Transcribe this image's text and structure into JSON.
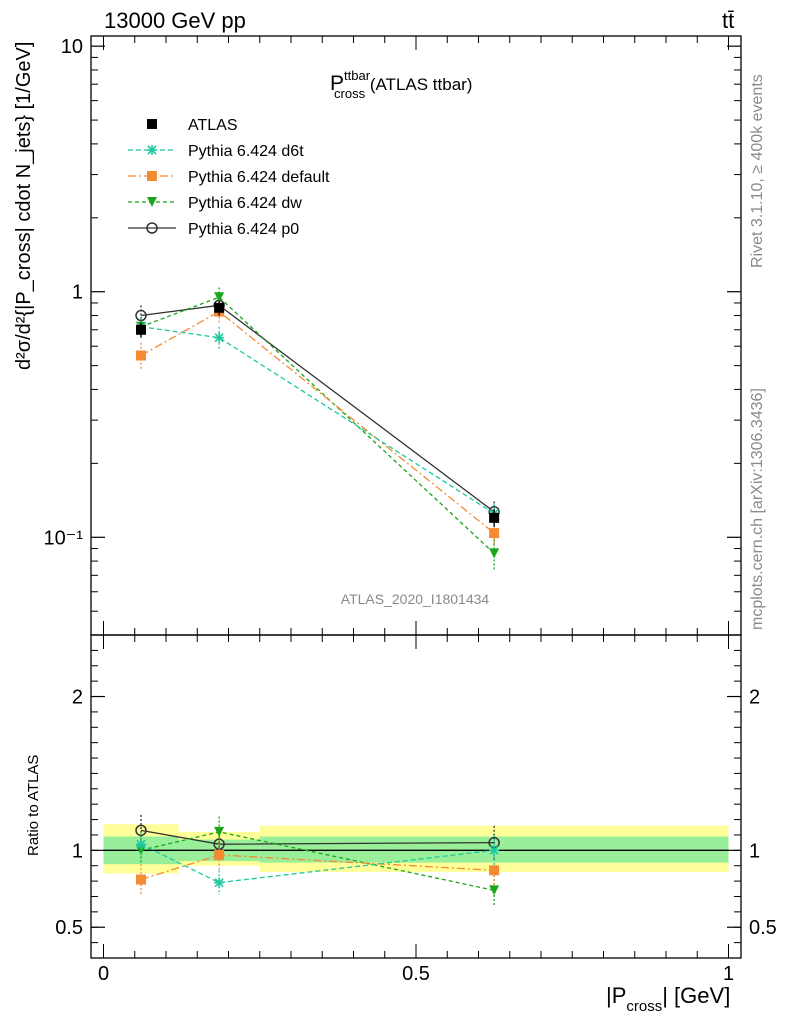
{
  "header": {
    "left": "13000 GeV pp",
    "right": "tt̄"
  },
  "side_labels": {
    "rivet": "Rivet 3.1.10, ≥ 400k events",
    "mcplots": "mcplots.cern.ch [arXiv:1306.3436]"
  },
  "watermark": "ATLAS_2020_I1801434",
  "main_title": {
    "base": "P",
    "sup": "ttbar",
    "sub": "cross",
    "rest": " (ATLAS ttbar)"
  },
  "ylabel_main": "d²σ/d²{|P_cross| cdot N_jets} [1/GeV]",
  "ylabel_ratio": "Ratio to ATLAS",
  "xlabel": {
    "pre": "|P",
    "sub": "cross",
    "post": "| [GeV]"
  },
  "legend": [
    {
      "label": "ATLAS",
      "color": "#000000",
      "marker": "square"
    },
    {
      "label": "Pythia 6.424 d6t",
      "color": "#1ec8a0",
      "marker": "star"
    },
    {
      "label": "Pythia 6.424 default",
      "color": "#f58a33",
      "marker": "square"
    },
    {
      "label": "Pythia 6.424 dw",
      "color": "#1aa51a",
      "marker": "triangle-down"
    },
    {
      "label": "Pythia 6.424 p0",
      "color": "#333333",
      "marker": "circle-open"
    }
  ],
  "chart_data": [
    {
      "type": "line",
      "panel": "main",
      "y_scale": "log",
      "xlim": [
        -0.02,
        1.02
      ],
      "ylim": [
        0.04,
        11
      ],
      "y_tick_labels": [
        "10⁻¹",
        "1",
        "10"
      ],
      "x": [
        0.06,
        0.185,
        0.625
      ],
      "bins": [
        [
          0,
          0.12
        ],
        [
          0.12,
          0.25
        ],
        [
          0.25,
          1.0
        ]
      ],
      "series": [
        {
          "name": "ATLAS",
          "values": [
            0.7,
            0.86,
            0.12
          ],
          "errors": [
            0.05,
            0.06,
            0.01
          ]
        },
        {
          "name": "Pythia 6.424 d6t",
          "values": [
            0.72,
            0.65,
            0.125
          ],
          "errors": [
            0.06,
            0.07,
            0.012
          ]
        },
        {
          "name": "Pythia 6.424 default",
          "values": [
            0.55,
            0.83,
            0.104
          ],
          "errors": [
            0.07,
            0.09,
            0.012
          ]
        },
        {
          "name": "Pythia 6.424 dw",
          "values": [
            0.72,
            0.95,
            0.086
          ],
          "errors": [
            0.07,
            0.09,
            0.012
          ]
        },
        {
          "name": "Pythia 6.424 p0",
          "values": [
            0.8,
            0.88,
            0.127
          ],
          "errors": [
            0.08,
            0.08,
            0.013
          ]
        }
      ]
    },
    {
      "type": "line",
      "panel": "ratio",
      "xlim": [
        -0.02,
        1.02
      ],
      "ylim": [
        0.3,
        2.4
      ],
      "y_tick_labels": [
        "0.5",
        "1",
        "2"
      ],
      "x_tick_labels": [
        "0",
        "0.5",
        "1"
      ],
      "bands": [
        {
          "x0": 0.0,
          "x1": 0.12,
          "inner": [
            0.91,
            1.09
          ],
          "outer": [
            0.85,
            1.17
          ]
        },
        {
          "x0": 0.12,
          "x1": 0.25,
          "inner": [
            0.93,
            1.07
          ],
          "outer": [
            0.9,
            1.12
          ]
        },
        {
          "x0": 0.25,
          "x1": 1.0,
          "inner": [
            0.92,
            1.09
          ],
          "outer": [
            0.86,
            1.16
          ]
        }
      ],
      "x": [
        0.06,
        0.185,
        0.625
      ],
      "series": [
        {
          "name": "Pythia 6.424 d6t",
          "values": [
            1.04,
            0.79,
            1.0
          ],
          "errors": [
            0.08,
            0.08,
            0.1
          ]
        },
        {
          "name": "Pythia 6.424 default",
          "values": [
            0.81,
            0.97,
            0.87
          ],
          "errors": [
            0.1,
            0.1,
            0.1
          ]
        },
        {
          "name": "Pythia 6.424 dw",
          "values": [
            1.0,
            1.12,
            0.74
          ],
          "errors": [
            0.09,
            0.1,
            0.1
          ]
        },
        {
          "name": "Pythia 6.424 p0",
          "values": [
            1.13,
            1.04,
            1.05
          ],
          "errors": [
            0.1,
            0.09,
            0.11
          ]
        }
      ]
    }
  ]
}
